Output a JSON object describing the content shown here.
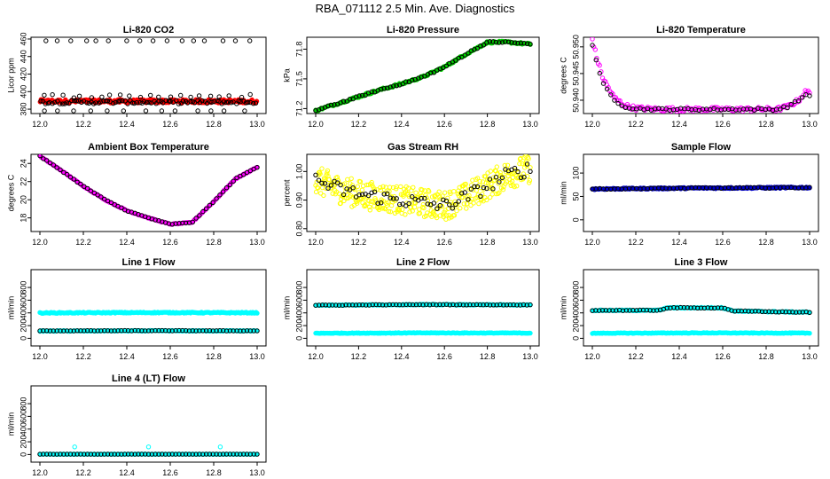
{
  "page": {
    "title": "RBA_071112  2.5 Min. Ave. Diagnostics"
  },
  "colors": {
    "black": "#000000",
    "red": "#ff0000",
    "green": "#00cc00",
    "magenta": "#ff00ff",
    "yellow": "#ffff00",
    "blue": "#0000cc",
    "cyan": "#00ffff"
  },
  "chart_data": [
    {
      "type": "scatter",
      "title": "Li-820 CO2",
      "xlabel": "",
      "ylabel": "Licor ppm",
      "xlim": [
        12.0,
        13.0
      ],
      "ylim": [
        375,
        462
      ],
      "xticks": [
        "12.0",
        "12.2",
        "12.4",
        "12.6",
        "12.8",
        "13.0"
      ],
      "yticks": [
        {
          "v": 380,
          "t": "380"
        },
        {
          "v": 400,
          "t": "400"
        },
        {
          "v": 420,
          "t": "420"
        },
        {
          "v": 440,
          "t": "440"
        },
        {
          "v": 460,
          "t": "460"
        }
      ],
      "series": [
        {
          "color": "#ff0000",
          "filled": true,
          "gen": "band",
          "y": 389,
          "spread": 2,
          "n": 240
        },
        {
          "color": "#000000",
          "filled": false,
          "gen": "band",
          "y": 388,
          "spread": 2,
          "n": 90
        },
        {
          "color": "#000000",
          "filled": false,
          "gen": "band",
          "y": 458,
          "spread": 0,
          "n": 16
        },
        {
          "color": "#000000",
          "filled": false,
          "gen": "band",
          "y": 395,
          "spread": 2,
          "n": 22
        },
        {
          "color": "#000000",
          "filled": false,
          "gen": "band",
          "y": 378,
          "spread": 0,
          "n": 13
        }
      ]
    },
    {
      "type": "scatter",
      "title": "Li-820 Pressure",
      "xlabel": "",
      "ylabel": "kPa",
      "xlim": [
        12.0,
        13.0
      ],
      "ylim": [
        71.15,
        71.92
      ],
      "xticks": [
        "12.0",
        "12.2",
        "12.4",
        "12.6",
        "12.8",
        "13.0"
      ],
      "yticks": [
        {
          "v": 71.2,
          "t": "71.2"
        },
        {
          "v": 71.5,
          "t": "71.5"
        },
        {
          "v": 71.8,
          "t": "71.8"
        }
      ],
      "series": [
        {
          "color": "#00cc00",
          "filled": true,
          "gen": "path",
          "n": 160,
          "spread": 0.01,
          "x": [
            12.0,
            12.1,
            12.2,
            12.3,
            12.4,
            12.5,
            12.6,
            12.7,
            12.8,
            12.9,
            13.0
          ],
          "y": [
            71.18,
            71.25,
            71.32,
            71.39,
            71.45,
            71.52,
            71.62,
            71.75,
            71.87,
            71.87,
            71.85
          ]
        },
        {
          "color": "#000000",
          "filled": false,
          "gen": "path",
          "n": 70,
          "spread": 0.008,
          "x": [
            12.0,
            12.1,
            12.2,
            12.3,
            12.4,
            12.5,
            12.6,
            12.7,
            12.8,
            12.9,
            13.0
          ],
          "y": [
            71.18,
            71.25,
            71.32,
            71.39,
            71.45,
            71.52,
            71.62,
            71.75,
            71.87,
            71.87,
            71.85
          ]
        }
      ]
    },
    {
      "type": "scatter",
      "title": "Li-820 Temperature",
      "xlabel": "",
      "ylabel": "degrees C",
      "xlim": [
        12.0,
        13.0
      ],
      "ylim": [
        50.9375,
        50.9518
      ],
      "xticks": [
        "12.0",
        "12.2",
        "12.4",
        "12.6",
        "12.8",
        "13.0"
      ],
      "yticks": [
        {
          "v": 50.94,
          "t": "50.940"
        },
        {
          "v": 50.945,
          "t": "50.945"
        },
        {
          "v": 50.95,
          "t": "50.950"
        }
      ],
      "series": [
        {
          "color": "#ff00ff",
          "filled": false,
          "gen": "path",
          "n": 150,
          "spread": 0.0004,
          "x": [
            12.0,
            12.02,
            12.05,
            12.1,
            12.15,
            12.2,
            12.3,
            12.5,
            12.7,
            12.85,
            12.9,
            12.95,
            12.98
          ],
          "y": [
            50.9515,
            50.948,
            50.944,
            50.9405,
            50.939,
            50.9385,
            50.9383,
            50.9383,
            50.9383,
            50.9383,
            50.9388,
            50.94,
            50.9415
          ]
        },
        {
          "color": "#000000",
          "filled": false,
          "gen": "path",
          "n": 60,
          "spread": 0.0002,
          "x": [
            12.0,
            12.02,
            12.05,
            12.1,
            12.15,
            12.2,
            12.3,
            12.5,
            12.7,
            12.85,
            12.9,
            12.95,
            12.98
          ],
          "y": [
            50.9505,
            50.947,
            50.943,
            50.94,
            50.9388,
            50.9384,
            50.9383,
            50.9383,
            50.9383,
            50.9383,
            50.9388,
            50.94,
            50.941
          ]
        }
      ]
    },
    {
      "type": "scatter",
      "title": "Ambient Box Temperature",
      "xlabel": "",
      "ylabel": "degrees C",
      "xlim": [
        12.0,
        13.0
      ],
      "ylim": [
        16.5,
        25.0
      ],
      "xticks": [
        "12.0",
        "12.2",
        "12.4",
        "12.6",
        "12.8",
        "13.0"
      ],
      "yticks": [
        {
          "v": 18,
          "t": "18"
        },
        {
          "v": 20,
          "t": "20"
        },
        {
          "v": 22,
          "t": "22"
        },
        {
          "v": 24,
          "t": "24"
        }
      ],
      "series": [
        {
          "color": "#ff00ff",
          "filled": true,
          "gen": "path",
          "n": 160,
          "spread": 0.05,
          "x": [
            12.0,
            12.1,
            12.2,
            12.3,
            12.4,
            12.5,
            12.6,
            12.7,
            12.8,
            12.9,
            13.0
          ],
          "y": [
            24.8,
            23.2,
            21.5,
            20.0,
            18.8,
            18.0,
            17.3,
            17.5,
            19.8,
            22.3,
            23.6
          ]
        },
        {
          "color": "#000000",
          "filled": false,
          "gen": "path",
          "n": 65,
          "spread": 0.04,
          "x": [
            12.0,
            12.1,
            12.2,
            12.3,
            12.4,
            12.5,
            12.6,
            12.7,
            12.8,
            12.9,
            13.0
          ],
          "y": [
            24.8,
            23.2,
            21.5,
            20.0,
            18.8,
            18.0,
            17.3,
            17.5,
            19.8,
            22.3,
            23.6
          ]
        }
      ]
    },
    {
      "type": "scatter",
      "title": "Gas Stream RH",
      "xlabel": "",
      "ylabel": "percent",
      "xlim": [
        12.0,
        13.0
      ],
      "ylim": [
        0.79,
        1.06
      ],
      "xticks": [
        "12.0",
        "12.2",
        "12.4",
        "12.6",
        "12.8",
        "13.0"
      ],
      "yticks": [
        {
          "v": 0.8,
          "t": "0.80"
        },
        {
          "v": 0.9,
          "t": "0.90"
        },
        {
          "v": 1.0,
          "t": "1.00"
        }
      ],
      "series": [
        {
          "color": "#ffff00",
          "filled": false,
          "gen": "path",
          "n": 380,
          "spread": 0.05,
          "x": [
            12.0,
            12.1,
            12.2,
            12.3,
            12.4,
            12.5,
            12.6,
            12.7,
            12.8,
            12.9,
            13.0
          ],
          "y": [
            0.97,
            0.94,
            0.92,
            0.91,
            0.9,
            0.89,
            0.88,
            0.91,
            0.95,
            0.99,
            1.01
          ]
        },
        {
          "color": "#000000",
          "filled": false,
          "gen": "path",
          "n": 70,
          "spread": 0.025,
          "x": [
            12.0,
            12.1,
            12.2,
            12.3,
            12.4,
            12.5,
            12.6,
            12.7,
            12.8,
            12.9,
            13.0
          ],
          "y": [
            0.97,
            0.94,
            0.92,
            0.91,
            0.9,
            0.89,
            0.88,
            0.91,
            0.95,
            0.99,
            1.01
          ]
        }
      ]
    },
    {
      "type": "scatter",
      "title": "Sample Flow",
      "xlabel": "",
      "ylabel": "ml/min",
      "xlim": [
        12.0,
        13.0
      ],
      "ylim": [
        -25,
        140
      ],
      "xticks": [
        "12.0",
        "12.2",
        "12.4",
        "12.6",
        "12.8",
        "13.0"
      ],
      "yticks": [
        {
          "v": 0,
          "t": "0"
        },
        {
          "v": 50,
          "t": "50"
        },
        {
          "v": 100,
          "t": "100"
        }
      ],
      "series": [
        {
          "color": "#0000cc",
          "filled": true,
          "gen": "path",
          "n": 200,
          "spread": 1.5,
          "x": [
            12.0,
            12.5,
            13.0
          ],
          "y": [
            66,
            68,
            69
          ]
        },
        {
          "color": "#000000",
          "filled": false,
          "gen": "path",
          "n": 60,
          "spread": 1.0,
          "x": [
            12.0,
            12.5,
            13.0
          ],
          "y": [
            66,
            68,
            69
          ]
        }
      ]
    },
    {
      "type": "scatter",
      "title": "Line 1 Flow",
      "xlabel": "",
      "ylabel": "ml/min",
      "xlim": [
        12.0,
        13.0
      ],
      "ylim": [
        -120,
        1080
      ],
      "xticks": [
        "12.0",
        "12.2",
        "12.4",
        "12.6",
        "12.8",
        "13.0"
      ],
      "yticks": [
        {
          "v": 0,
          "t": "0"
        },
        {
          "v": 200,
          "t": "200"
        },
        {
          "v": 400,
          "t": "400"
        },
        {
          "v": 600,
          "t": "600"
        },
        {
          "v": 800,
          "t": "800"
        }
      ],
      "series": [
        {
          "color": "#00ffff",
          "filled": true,
          "gen": "path",
          "n": 200,
          "spread": 8,
          "x": [
            12.0,
            12.5,
            13.0
          ],
          "y": [
            400,
            405,
            402
          ]
        },
        {
          "color": "#00ffff",
          "filled": true,
          "gen": "path",
          "n": 200,
          "spread": 6,
          "x": [
            12.0,
            12.5,
            13.0
          ],
          "y": [
            115,
            118,
            117
          ]
        },
        {
          "color": "#000000",
          "filled": false,
          "gen": "path",
          "n": 65,
          "spread": 3,
          "x": [
            12.0,
            12.5,
            13.0
          ],
          "y": [
            118,
            120,
            118
          ]
        }
      ]
    },
    {
      "type": "scatter",
      "title": "Line 2 Flow",
      "xlabel": "",
      "ylabel": "ml/min",
      "xlim": [
        12.0,
        13.0
      ],
      "ylim": [
        -120,
        1080
      ],
      "xticks": [
        "12.0",
        "12.2",
        "12.4",
        "12.6",
        "12.8",
        "13.0"
      ],
      "yticks": [
        {
          "v": 0,
          "t": "0"
        },
        {
          "v": 200,
          "t": "200"
        },
        {
          "v": 400,
          "t": "400"
        },
        {
          "v": 600,
          "t": "600"
        },
        {
          "v": 800,
          "t": "800"
        }
      ],
      "series": [
        {
          "color": "#00ffff",
          "filled": true,
          "gen": "path",
          "n": 200,
          "spread": 6,
          "x": [
            12.0,
            12.5,
            13.0
          ],
          "y": [
            520,
            530,
            525
          ]
        },
        {
          "color": "#00ffff",
          "filled": true,
          "gen": "path",
          "n": 200,
          "spread": 5,
          "x": [
            12.0,
            12.5,
            13.0
          ],
          "y": [
            80,
            85,
            83
          ]
        },
        {
          "color": "#000000",
          "filled": false,
          "gen": "path",
          "n": 65,
          "spread": 4,
          "x": [
            12.0,
            12.5,
            13.0
          ],
          "y": [
            520,
            530,
            525
          ]
        }
      ]
    },
    {
      "type": "scatter",
      "title": "Line 3 Flow",
      "xlabel": "",
      "ylabel": "ml/min",
      "xlim": [
        12.0,
        13.0
      ],
      "ylim": [
        -120,
        1080
      ],
      "xticks": [
        "12.0",
        "12.2",
        "12.4",
        "12.6",
        "12.8",
        "13.0"
      ],
      "yticks": [
        {
          "v": 0,
          "t": "0"
        },
        {
          "v": 200,
          "t": "200"
        },
        {
          "v": 400,
          "t": "400"
        },
        {
          "v": 600,
          "t": "600"
        },
        {
          "v": 800,
          "t": "800"
        }
      ],
      "series": [
        {
          "color": "#00ffff",
          "filled": true,
          "gen": "path",
          "n": 200,
          "spread": 8,
          "x": [
            12.0,
            12.3,
            12.35,
            12.6,
            12.65,
            12.8,
            13.0
          ],
          "y": [
            440,
            440,
            480,
            480,
            430,
            420,
            410
          ]
        },
        {
          "color": "#00ffff",
          "filled": true,
          "gen": "path",
          "n": 200,
          "spread": 5,
          "x": [
            12.0,
            12.5,
            13.0
          ],
          "y": [
            80,
            85,
            82
          ]
        },
        {
          "color": "#000000",
          "filled": false,
          "gen": "path",
          "n": 65,
          "spread": 5,
          "x": [
            12.0,
            12.3,
            12.35,
            12.6,
            12.65,
            12.8,
            13.0
          ],
          "y": [
            440,
            440,
            480,
            480,
            430,
            420,
            410
          ]
        }
      ]
    },
    {
      "type": "scatter",
      "title": "Line 4 (LT) Flow",
      "xlabel": "",
      "ylabel": "ml/min",
      "xlim": [
        12.0,
        13.0
      ],
      "ylim": [
        -120,
        1080
      ],
      "xticks": [
        "12.0",
        "12.2",
        "12.4",
        "12.6",
        "12.8",
        "13.0"
      ],
      "yticks": [
        {
          "v": 0,
          "t": "0"
        },
        {
          "v": 200,
          "t": "200"
        },
        {
          "v": 400,
          "t": "400"
        },
        {
          "v": 600,
          "t": "600"
        },
        {
          "v": 800,
          "t": "800"
        }
      ],
      "series": [
        {
          "color": "#00ffff",
          "filled": true,
          "gen": "path",
          "n": 200,
          "spread": 2,
          "x": [
            12.0,
            13.0
          ],
          "y": [
            5,
            5
          ]
        },
        {
          "color": "#00ffff",
          "filled": false,
          "gen": "points",
          "x": [
            12.16,
            12.5,
            12.83
          ],
          "y": [
            120,
            120,
            120
          ]
        },
        {
          "color": "#000000",
          "filled": false,
          "gen": "path",
          "n": 65,
          "spread": 1,
          "x": [
            12.0,
            13.0
          ],
          "y": [
            5,
            5
          ]
        }
      ]
    }
  ]
}
